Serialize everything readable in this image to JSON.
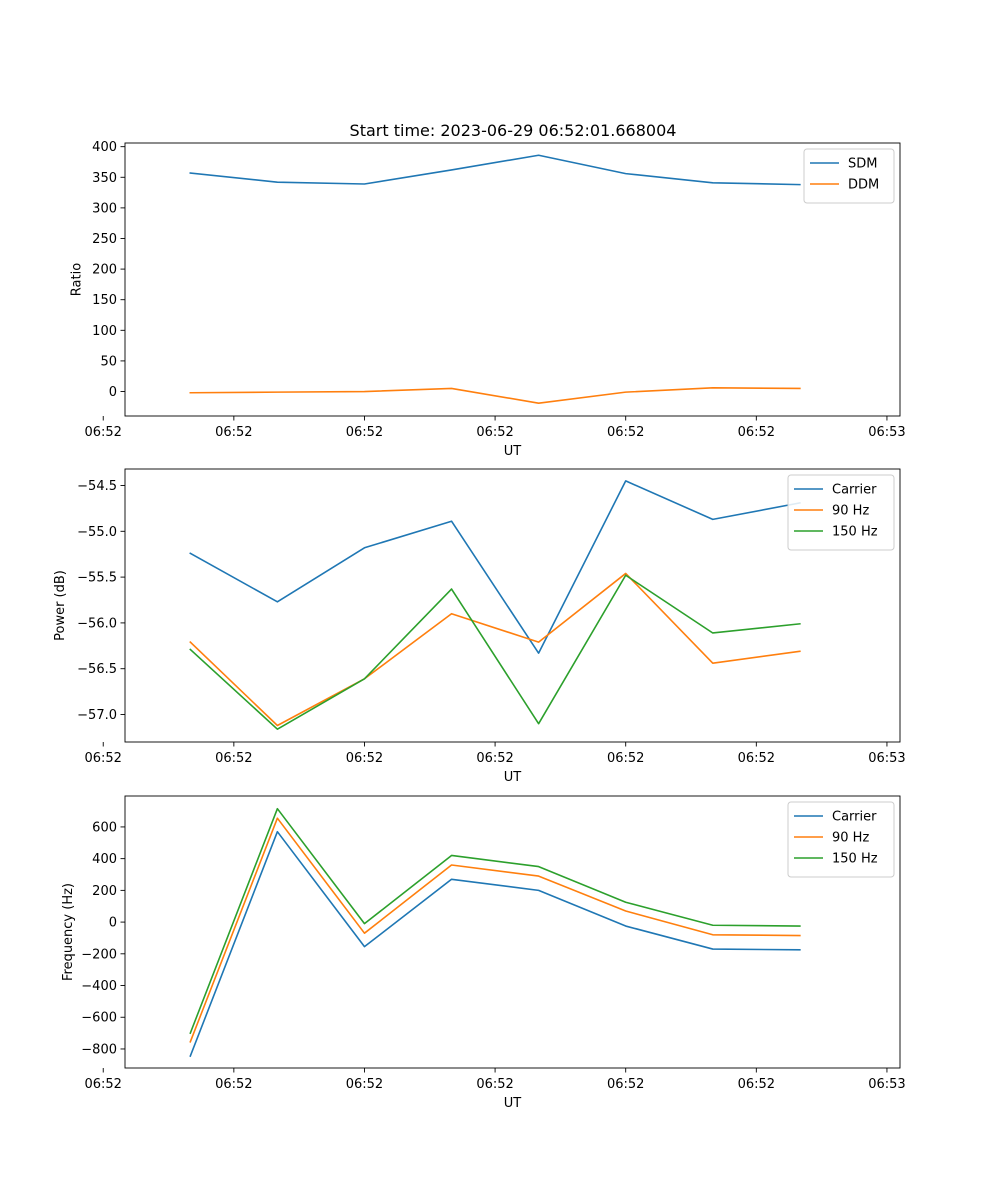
{
  "figure": {
    "title": "Start time: 2023-06-29 06:52:01.668004"
  },
  "chart_data": [
    {
      "type": "line",
      "title": "Start time: 2023-06-29 06:52:01.668004",
      "xlabel": "UT",
      "ylabel": "Ratio",
      "x": [
        1,
        2,
        3,
        4,
        5,
        6,
        7,
        8
      ],
      "xlim": [
        0.25,
        9.15
      ],
      "x_ticks": [
        {
          "value": 0.0,
          "label": "06:52"
        },
        {
          "value": 1.5,
          "label": "06:52"
        },
        {
          "value": 3.0,
          "label": "06:52"
        },
        {
          "value": 4.5,
          "label": "06:52"
        },
        {
          "value": 6.0,
          "label": "06:52"
        },
        {
          "value": 7.5,
          "label": "06:52"
        },
        {
          "value": 9.0,
          "label": "06:53"
        }
      ],
      "ylim": [
        -40,
        406
      ],
      "y_ticks": [
        0,
        50,
        100,
        150,
        200,
        250,
        300,
        350,
        400
      ],
      "y_tick_labels": [
        "0",
        "50",
        "100",
        "150",
        "200",
        "250",
        "300",
        "350",
        "400"
      ],
      "grid": false,
      "legend_position": "top-right",
      "series": [
        {
          "name": "SDM",
          "color": "#1f77b4",
          "values": [
            357,
            342,
            339,
            362,
            386,
            356,
            341,
            338
          ]
        },
        {
          "name": "DDM",
          "color": "#ff7f0e",
          "values": [
            -2,
            -1,
            0,
            5,
            -19,
            -1,
            6,
            5
          ]
        }
      ]
    },
    {
      "type": "line",
      "xlabel": "UT",
      "ylabel": "Power (dB)",
      "x": [
        1,
        2,
        3,
        4,
        5,
        6,
        7,
        8
      ],
      "xlim": [
        0.25,
        9.15
      ],
      "x_ticks": [
        {
          "value": 0.0,
          "label": "06:52"
        },
        {
          "value": 1.5,
          "label": "06:52"
        },
        {
          "value": 3.0,
          "label": "06:52"
        },
        {
          "value": 4.5,
          "label": "06:52"
        },
        {
          "value": 6.0,
          "label": "06:52"
        },
        {
          "value": 7.5,
          "label": "06:52"
        },
        {
          "value": 9.0,
          "label": "06:53"
        }
      ],
      "ylim": [
        -57.3,
        -54.32
      ],
      "y_ticks": [
        -57.0,
        -56.5,
        -56.0,
        -55.5,
        -55.0,
        -54.5
      ],
      "y_tick_labels": [
        "−57.0",
        "−56.5",
        "−56.0",
        "−55.5",
        "−55.0",
        "−54.5"
      ],
      "grid": false,
      "legend_position": "top-right",
      "series": [
        {
          "name": "Carrier",
          "color": "#1f77b4",
          "values": [
            -55.24,
            -55.77,
            -55.18,
            -54.89,
            -56.33,
            -54.45,
            -54.87,
            -54.69
          ]
        },
        {
          "name": "90 Hz",
          "color": "#ff7f0e",
          "values": [
            -56.21,
            -57.12,
            -56.61,
            -55.9,
            -56.21,
            -55.46,
            -56.44,
            -56.31
          ]
        },
        {
          "name": "150 Hz",
          "color": "#2ca02c",
          "values": [
            -56.29,
            -57.16,
            -56.61,
            -55.63,
            -57.1,
            -55.48,
            -56.11,
            -56.01
          ]
        }
      ]
    },
    {
      "type": "line",
      "xlabel": "UT",
      "ylabel": "Frequency (Hz)",
      "x": [
        1,
        2,
        3,
        4,
        5,
        6,
        7,
        8
      ],
      "xlim": [
        0.25,
        9.15
      ],
      "x_ticks": [
        {
          "value": 0.0,
          "label": "06:52"
        },
        {
          "value": 1.5,
          "label": "06:52"
        },
        {
          "value": 3.0,
          "label": "06:52"
        },
        {
          "value": 4.5,
          "label": "06:52"
        },
        {
          "value": 6.0,
          "label": "06:52"
        },
        {
          "value": 7.5,
          "label": "06:52"
        },
        {
          "value": 9.0,
          "label": "06:53"
        }
      ],
      "ylim": [
        -920,
        795
      ],
      "y_ticks": [
        -800,
        -600,
        -400,
        -200,
        0,
        200,
        400,
        600
      ],
      "y_tick_labels": [
        "−800",
        "−600",
        "−400",
        "−200",
        "0",
        "200",
        "400",
        "600"
      ],
      "grid": false,
      "legend_position": "top-right",
      "series": [
        {
          "name": "Carrier",
          "color": "#1f77b4",
          "values": [
            -845,
            570,
            -155,
            270,
            200,
            -25,
            -170,
            -175
          ]
        },
        {
          "name": "90 Hz",
          "color": "#ff7f0e",
          "values": [
            -755,
            655,
            -70,
            360,
            290,
            70,
            -80,
            -85
          ]
        },
        {
          "name": "150 Hz",
          "color": "#2ca02c",
          "values": [
            -700,
            715,
            -10,
            420,
            350,
            125,
            -20,
            -25
          ]
        }
      ]
    }
  ]
}
